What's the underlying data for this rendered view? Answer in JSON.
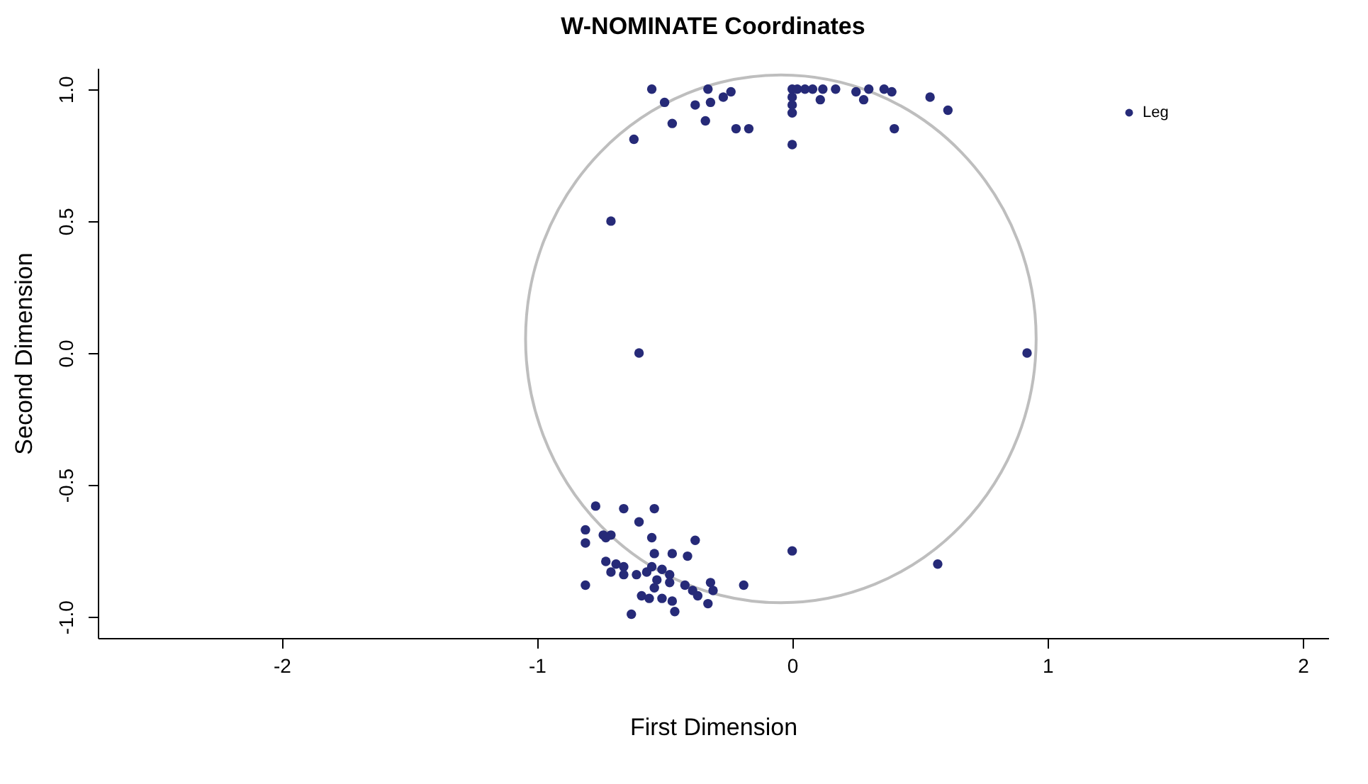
{
  "chart_data": {
    "type": "scatter",
    "title": "W-NOMINATE Coordinates",
    "xlabel": "First Dimension",
    "ylabel": "Second Dimension",
    "xlim": [
      -2.72,
      2.1
    ],
    "ylim": [
      -1.08,
      1.08
    ],
    "xticks": [
      -2,
      -1,
      0,
      1,
      2
    ],
    "yticks": [
      {
        "value": -1,
        "label": "-1.0"
      },
      {
        "value": -0.5,
        "label": "-0.5"
      },
      {
        "value": 0,
        "label": "0.0"
      },
      {
        "value": 0.5,
        "label": "0.5"
      },
      {
        "value": 1,
        "label": "1.0"
      }
    ],
    "grid": false,
    "legend": "top right",
    "marker": "circle",
    "series": [
      {
        "name": "Leg",
        "color": "#262a78",
        "x": [
          -0.55,
          -0.5,
          -0.62,
          -0.47,
          -0.38,
          -0.34,
          -0.33,
          -0.32,
          -0.27,
          -0.24,
          -0.22,
          -0.17,
          0,
          0,
          0,
          0,
          0,
          -0.71,
          0.02,
          0.05,
          0.08,
          0.12,
          0.17,
          0.11,
          0.25,
          0.3,
          0.28,
          0.36,
          0.39,
          0.54,
          0.61,
          0.4,
          -0.6,
          0.92,
          0,
          0.57,
          -0.77,
          -0.66,
          -0.54,
          -0.6,
          -0.81,
          -0.74,
          -0.71,
          -0.73,
          -0.81,
          -0.55,
          -0.38,
          -0.47,
          -0.54,
          -0.41,
          -0.73,
          -0.69,
          -0.66,
          -0.71,
          -0.66,
          -0.61,
          -0.57,
          -0.55,
          -0.51,
          -0.48,
          -0.53,
          -0.48,
          -0.81,
          -0.42,
          -0.32,
          -0.19,
          -0.39,
          -0.37,
          -0.31,
          -0.54,
          -0.59,
          -0.56,
          -0.51,
          -0.47,
          -0.33,
          -0.46,
          -0.63
        ],
        "values": [
          1.0,
          0.95,
          0.81,
          0.87,
          0.94,
          0.88,
          1.0,
          0.95,
          0.97,
          0.99,
          0.85,
          0.85,
          0.79,
          1.0,
          0.97,
          0.94,
          0.91,
          0.5,
          1.0,
          1.0,
          1.0,
          1.0,
          1.0,
          0.96,
          0.99,
          1.0,
          0.96,
          1.0,
          0.99,
          0.97,
          0.92,
          0.85,
          0.0,
          0.0,
          -0.75,
          -0.8,
          -0.58,
          -0.59,
          -0.59,
          -0.64,
          -0.67,
          -0.69,
          -0.69,
          -0.7,
          -0.72,
          -0.7,
          -0.71,
          -0.76,
          -0.76,
          -0.77,
          -0.79,
          -0.8,
          -0.81,
          -0.83,
          -0.84,
          -0.84,
          -0.83,
          -0.81,
          -0.82,
          -0.84,
          -0.86,
          -0.87,
          -0.88,
          -0.88,
          -0.87,
          -0.88,
          -0.9,
          -0.92,
          -0.9,
          -0.89,
          -0.92,
          -0.93,
          -0.93,
          -0.94,
          -0.95,
          -0.98,
          -0.99
        ]
      }
    ]
  }
}
